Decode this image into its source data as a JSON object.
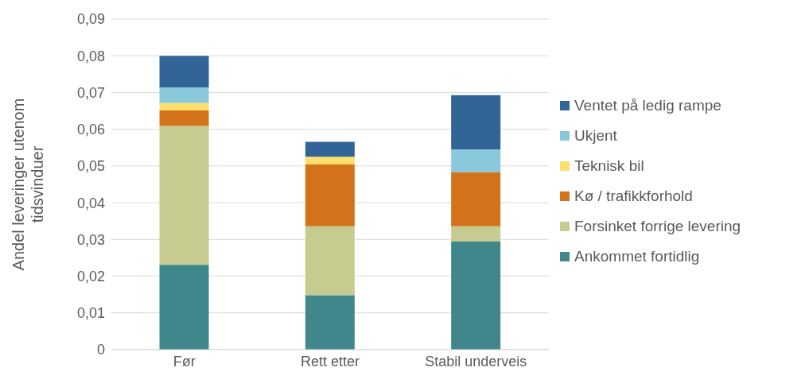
{
  "chart_data": {
    "type": "bar",
    "stacked": true,
    "ylabel": "Andel leveringer utenom tidsvinduer",
    "categories": [
      "Før",
      "Rett etter",
      "Stabil underveis"
    ],
    "series": [
      {
        "name": "Ankommet fortidlig",
        "color": "#3f878b",
        "values": [
          0.0231,
          0.0148,
          0.0294
        ]
      },
      {
        "name": "Forsinket forrige levering",
        "color": "#c6cc8f",
        "values": [
          0.0378,
          0.0188,
          0.0042
        ]
      },
      {
        "name": "Kø / trafikkforhold",
        "color": "#d4721c",
        "values": [
          0.0042,
          0.0168,
          0.0147
        ]
      },
      {
        "name": "Teknisk bil",
        "color": "#ffdf6e",
        "values": [
          0.0021,
          0.0021,
          0
        ]
      },
      {
        "name": "Ukjent",
        "color": "#8ac8db",
        "values": [
          0.0042,
          0,
          0.0062
        ]
      },
      {
        "name": "Ventet på ledig rampe",
        "color": "#326497",
        "values": [
          0.0086,
          0.0041,
          0.0148
        ]
      }
    ],
    "ylim": [
      0,
      0.09
    ],
    "yticks": [
      0,
      {
        "value": 0.01,
        "label": "0,01"
      },
      {
        "value": 0.02,
        "label": "0,02"
      },
      {
        "value": 0.03,
        "label": "0,03"
      },
      {
        "value": 0.04,
        "label": "0,04"
      },
      {
        "value": 0.05,
        "label": "0,05"
      },
      {
        "value": 0.06,
        "label": "0,06"
      },
      {
        "value": 0.07,
        "label": "0,07"
      },
      {
        "value": 0.08,
        "label": "0,08"
      },
      {
        "value": 0.09,
        "label": "0,09"
      }
    ],
    "grid": "y",
    "legend": "right"
  }
}
